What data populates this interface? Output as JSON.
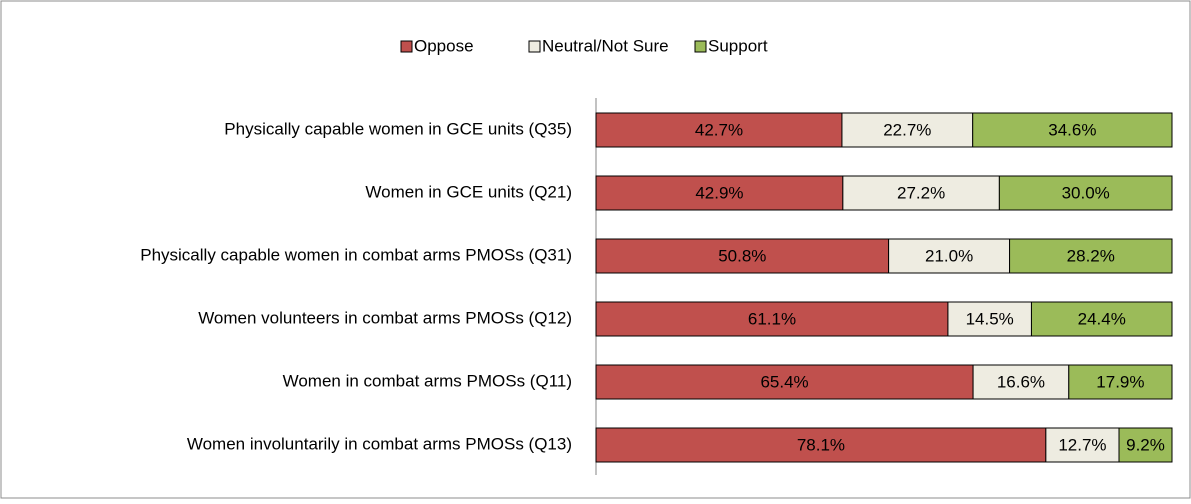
{
  "chart_data": {
    "type": "stacked-bar-horizontal",
    "categories": [
      "Physically capable women in GCE units (Q35)",
      "Women in GCE units (Q21)",
      "Physically capable women in combat arms PMOSs (Q31)",
      "Women volunteers in combat arms PMOSs (Q12)",
      "Women in combat arms PMOSs (Q11)",
      "Women involuntarily in combat arms PMOSs (Q13)"
    ],
    "series": [
      {
        "name": "Oppose",
        "color": "#c0504d",
        "values": [
          42.7,
          42.9,
          50.8,
          61.1,
          65.4,
          78.1
        ],
        "value_labels": [
          "42.7%",
          "42.9%",
          "50.8%",
          "61.1%",
          "65.4%",
          "78.1%"
        ]
      },
      {
        "name": "Neutral/Not Sure",
        "color": "#eeece1",
        "values": [
          22.7,
          27.2,
          21.0,
          14.5,
          16.6,
          12.7
        ],
        "value_labels": [
          "22.7%",
          "27.2%",
          "21.0%",
          "14.5%",
          "16.6%",
          "12.7%"
        ]
      },
      {
        "name": "Support",
        "color": "#9bbb59",
        "values": [
          34.6,
          30.0,
          28.2,
          24.4,
          17.9,
          9.2
        ],
        "value_labels": [
          "34.6%",
          "30.0%",
          "28.2%",
          "24.4%",
          "17.9%",
          "9.2%"
        ]
      }
    ],
    "legend": "top"
  }
}
